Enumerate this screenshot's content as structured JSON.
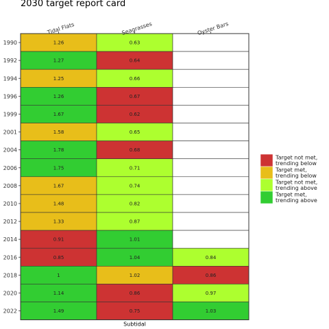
{
  "chart_data": {
    "type": "heatmap",
    "title": "2030 target report card",
    "xlabel": "Subtidal",
    "ylabel": "",
    "columns": [
      "Tidal Flats",
      "Seagrasses",
      "Oyster Bars"
    ],
    "rows": [
      "1990",
      "1992",
      "1994",
      "1996",
      "1999",
      "2001",
      "2004",
      "2006",
      "2008",
      "2010",
      "2012",
      "2014",
      "2016",
      "2018",
      "2020",
      "2022"
    ],
    "values": [
      [
        "1.26",
        "0.63",
        null
      ],
      [
        "1.27",
        "0.64",
        null
      ],
      [
        "1.25",
        "0.66",
        null
      ],
      [
        "1.26",
        "0.67",
        null
      ],
      [
        "1.67",
        "0.62",
        null
      ],
      [
        "1.58",
        "0.65",
        null
      ],
      [
        "1.78",
        "0.68",
        null
      ],
      [
        "1.75",
        "0.71",
        null
      ],
      [
        "1.67",
        "0.74",
        null
      ],
      [
        "1.48",
        "0.82",
        null
      ],
      [
        "1.33",
        "0.87",
        null
      ],
      [
        "0.91",
        "1.01",
        null
      ],
      [
        "0.85",
        "1.04",
        "0.84"
      ],
      [
        "1",
        "1.02",
        "0.86"
      ],
      [
        "1.14",
        "0.86",
        "0.97"
      ],
      [
        "1.49",
        "0.75",
        "1.03"
      ]
    ],
    "status": [
      [
        "met_below",
        "notmet_above",
        null
      ],
      [
        "met_above",
        "notmet_below",
        null
      ],
      [
        "met_below",
        "notmet_above",
        null
      ],
      [
        "met_above",
        "notmet_below",
        null
      ],
      [
        "met_above",
        "notmet_below",
        null
      ],
      [
        "met_below",
        "notmet_above",
        null
      ],
      [
        "met_above",
        "notmet_below",
        null
      ],
      [
        "met_above",
        "notmet_above",
        null
      ],
      [
        "met_below",
        "notmet_above",
        null
      ],
      [
        "met_below",
        "notmet_above",
        null
      ],
      [
        "met_below",
        "notmet_above",
        null
      ],
      [
        "notmet_below",
        "met_above",
        null
      ],
      [
        "notmet_below",
        "met_above",
        "notmet_above"
      ],
      [
        "met_above",
        "met_below",
        "notmet_below"
      ],
      [
        "met_above",
        "notmet_below",
        "notmet_above"
      ],
      [
        "met_above",
        "notmet_below",
        "met_above"
      ]
    ],
    "legend": {
      "position": "right",
      "items": [
        {
          "key": "notmet_below",
          "label_lines": [
            "Target not met,",
            "trending below"
          ],
          "color": "#cd3333"
        },
        {
          "key": "met_below",
          "label_lines": [
            "Target met,",
            "trending below"
          ],
          "color": "#e8be1a"
        },
        {
          "key": "notmet_above",
          "label_lines": [
            "Target not met,",
            "trending above"
          ],
          "color": "#adff2f"
        },
        {
          "key": "met_above",
          "label_lines": [
            "Target met,",
            "trending above"
          ],
          "color": "#32cd32"
        }
      ]
    }
  }
}
